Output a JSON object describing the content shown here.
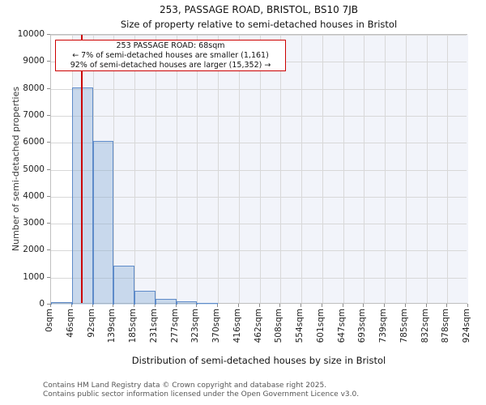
{
  "title": "253, PASSAGE ROAD, BRISTOL, BS10 7JB",
  "subtitle": "Size of property relative to semi-detached houses in Bristol",
  "annotation": {
    "line1": "253 PASSAGE ROAD: 68sqm",
    "line2": "← 7% of semi-detached houses are smaller (1,161)",
    "line3": "92% of semi-detached houses are larger (15,352) →"
  },
  "chart_data": {
    "type": "bar",
    "title": "253, PASSAGE ROAD, BRISTOL, BS10 7JB — Size of property relative to semi-detached houses in Bristol",
    "categories": [
      "0sqm",
      "46sqm",
      "92sqm",
      "139sqm",
      "185sqm",
      "231sqm",
      "277sqm",
      "323sqm",
      "370sqm",
      "416sqm",
      "462sqm",
      "508sqm",
      "554sqm",
      "601sqm",
      "647sqm",
      "693sqm",
      "739sqm",
      "785sqm",
      "832sqm",
      "878sqm",
      "924sqm"
    ],
    "bin_width_sqm": 46,
    "values": [
      100,
      8050,
      6080,
      1450,
      500,
      200,
      110,
      50,
      0,
      0,
      0,
      0,
      0,
      0,
      0,
      0,
      0,
      0,
      0,
      0
    ],
    "yticks": [
      0,
      1000,
      2000,
      3000,
      4000,
      5000,
      6000,
      7000,
      8000,
      9000,
      10000
    ],
    "ylim": [
      0,
      10000
    ],
    "xlim_sqm": [
      0,
      924
    ],
    "xlabel": "Distribution of semi-detached houses by size in Bristol",
    "ylabel": "Number of semi-detached properties",
    "grid": true,
    "marker": {
      "value_sqm": 68,
      "label": "253 PASSAGE ROAD: 68sqm"
    },
    "shaded_band_start_sqm": 46
  },
  "colors": {
    "marker_red": "#cc0000",
    "bar_fill_rgba": "rgba(102,153,204,0.30)",
    "bar_border": "#5e8bc9",
    "band_bg": "#f2f4fa",
    "grid": "#d8d8d8",
    "frame": "#bfbfbf"
  },
  "footer": {
    "line1": "Contains HM Land Registry data © Crown copyright and database right 2025.",
    "line2": "Contains public sector information licensed under the Open Government Licence v3.0."
  }
}
